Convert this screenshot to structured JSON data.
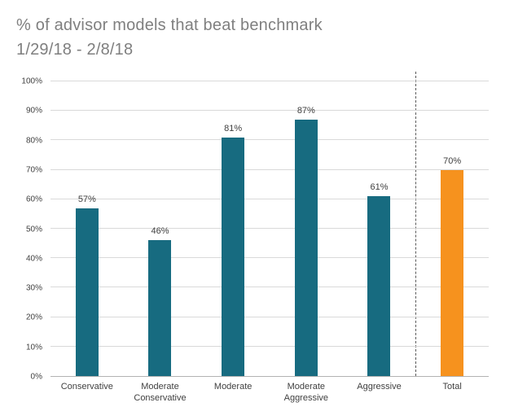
{
  "title": "% of advisor models that beat benchmark",
  "subtitle": "1/29/18 - 2/8/18",
  "chart_data": {
    "type": "bar",
    "categories": [
      "Conservative",
      "Moderate\nConservative",
      "Moderate",
      "Moderate\nAggressive",
      "Aggressive",
      "Total"
    ],
    "values": [
      57,
      46,
      81,
      87,
      61,
      70
    ],
    "value_labels": [
      "57%",
      "46%",
      "81%",
      "87%",
      "61%",
      "70%"
    ],
    "bar_colors": [
      "#176b80",
      "#176b80",
      "#176b80",
      "#176b80",
      "#176b80",
      "#f6921e"
    ],
    "title": "% of advisor models that beat benchmark",
    "subtitle": "1/29/18 - 2/8/18",
    "xlabel": "",
    "ylabel": "",
    "ylim": [
      0,
      100
    ],
    "ytick_step": 10,
    "ytick_labels": [
      "0%",
      "10%",
      "20%",
      "30%",
      "40%",
      "50%",
      "60%",
      "70%",
      "80%",
      "90%",
      "100%"
    ],
    "grid": true,
    "legend": false,
    "separator_after_index": 4
  },
  "colors": {
    "teal": "#176b80",
    "orange": "#f6921e",
    "gridline": "#d9d9d9",
    "axis": "#b3b3b3",
    "title_text": "#7f7f7f",
    "label_text": "#404040"
  }
}
